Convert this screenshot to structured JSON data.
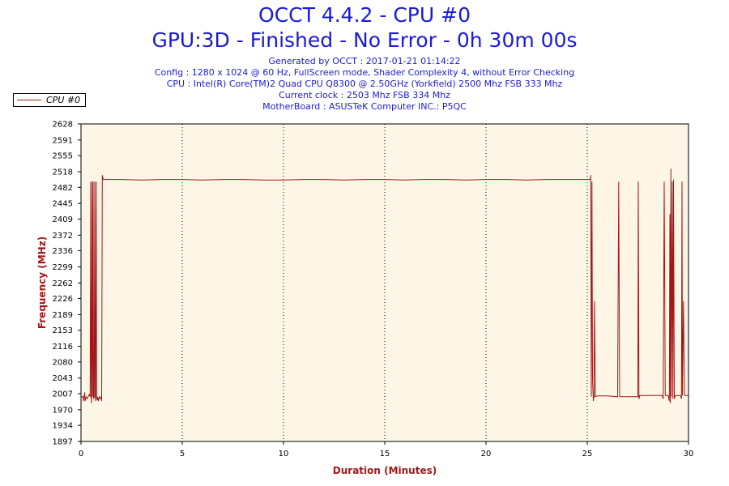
{
  "header": {
    "title": "OCCT 4.4.2 - CPU #0",
    "subtitle": "GPU:3D - Finished - No Error - 0h 30m 00s",
    "info_lines": [
      "Generated by OCCT : 2017-01-21 01:14:22",
      "Config : 1280 x 1024 @ 60 Hz, FullScreen mode, Shader Complexity 4, without Error Checking",
      "CPU : Intel(R) Core(TM)2 Quad CPU Q8300 @ 2.50GHz (Yorkfield) 2500 Mhz FSB 333 Mhz",
      "Current clock : 2503 Mhz FSB 334 Mhz",
      "MotherBoard : ASUSTeK Computer INC.: P5QC"
    ]
  },
  "colors": {
    "title": "#1a1ad8",
    "axis_label": "#a01818",
    "series": "#a01818",
    "plot_bg": "#fdf6e6"
  },
  "chart_data": {
    "type": "line",
    "xlabel": "Duration (Minutes)",
    "ylabel": "Frequency (MHz)",
    "xlim": [
      0,
      30
    ],
    "ylim": [
      1897,
      2628
    ],
    "x_ticks": [
      0,
      5,
      10,
      15,
      20,
      25,
      30
    ],
    "y_ticks": [
      1897,
      1934,
      1970,
      2007,
      2043,
      2080,
      2116,
      2153,
      2189,
      2226,
      2262,
      2299,
      2336,
      2372,
      2409,
      2445,
      2482,
      2518,
      2555,
      2591,
      2628
    ],
    "grid": "vertical-dotted",
    "legend": "top-left",
    "series": [
      {
        "name": "CPU #0",
        "points": [
          [
            0,
            2000
          ],
          [
            0.1,
            2000
          ],
          [
            0.12,
            1990
          ],
          [
            0.15,
            2000
          ],
          [
            0.18,
            2010
          ],
          [
            0.2,
            1990
          ],
          [
            0.25,
            2000
          ],
          [
            0.3,
            1995
          ],
          [
            0.35,
            2000
          ],
          [
            0.4,
            2005
          ],
          [
            0.45,
            2000
          ],
          [
            0.48,
            2495
          ],
          [
            0.5,
            2000
          ],
          [
            0.52,
            1985
          ],
          [
            0.55,
            2495
          ],
          [
            0.57,
            2000
          ],
          [
            0.6,
            2495
          ],
          [
            0.62,
            1995
          ],
          [
            0.65,
            2000
          ],
          [
            0.68,
            2495
          ],
          [
            0.7,
            2000
          ],
          [
            0.72,
            1990
          ],
          [
            0.75,
            2495
          ],
          [
            0.77,
            2000
          ],
          [
            0.8,
            1992
          ],
          [
            0.82,
            2000
          ],
          [
            0.85,
            1990
          ],
          [
            0.9,
            2000
          ],
          [
            0.95,
            1995
          ],
          [
            1.0,
            2000
          ],
          [
            1.02,
            1990
          ],
          [
            1.05,
            2510
          ],
          [
            1.1,
            2500
          ],
          [
            2,
            2500
          ],
          [
            3,
            2499
          ],
          [
            4,
            2500
          ],
          [
            5,
            2500
          ],
          [
            6,
            2499
          ],
          [
            7,
            2500
          ],
          [
            8,
            2500
          ],
          [
            9,
            2499
          ],
          [
            10,
            2499
          ],
          [
            11,
            2500
          ],
          [
            12,
            2500
          ],
          [
            13,
            2499
          ],
          [
            14,
            2500
          ],
          [
            15,
            2500
          ],
          [
            16,
            2499
          ],
          [
            17,
            2500
          ],
          [
            18,
            2500
          ],
          [
            19,
            2499
          ],
          [
            20,
            2500
          ],
          [
            21,
            2500
          ],
          [
            22,
            2499
          ],
          [
            23,
            2500
          ],
          [
            24,
            2500
          ],
          [
            25,
            2500
          ],
          [
            25.15,
            2500
          ],
          [
            25.17,
            2510
          ],
          [
            25.2,
            2000
          ],
          [
            25.23,
            2495
          ],
          [
            25.26,
            2040
          ],
          [
            25.3,
            1990
          ],
          [
            25.33,
            2000
          ],
          [
            25.36,
            2220
          ],
          [
            25.4,
            2000
          ],
          [
            25.5,
            2002
          ],
          [
            26,
            2002
          ],
          [
            26.5,
            2000
          ],
          [
            26.55,
            2495
          ],
          [
            26.6,
            2000
          ],
          [
            27,
            2000
          ],
          [
            27.5,
            2000
          ],
          [
            27.52,
            2495
          ],
          [
            27.55,
            1995
          ],
          [
            27.6,
            2003
          ],
          [
            28,
            2003
          ],
          [
            28.5,
            2003
          ],
          [
            28.7,
            2003
          ],
          [
            28.75,
            1995
          ],
          [
            28.8,
            2495
          ],
          [
            28.85,
            2003
          ],
          [
            29,
            2003
          ],
          [
            29.05,
            1990
          ],
          [
            29.08,
            2420
          ],
          [
            29.1,
            1985
          ],
          [
            29.13,
            2525
          ],
          [
            29.16,
            2000
          ],
          [
            29.2,
            2495
          ],
          [
            29.23,
            1995
          ],
          [
            29.26,
            2500
          ],
          [
            29.3,
            1995
          ],
          [
            29.35,
            2003
          ],
          [
            29.6,
            2003
          ],
          [
            29.65,
            1995
          ],
          [
            29.68,
            2495
          ],
          [
            29.7,
            2003
          ],
          [
            29.75,
            2220
          ],
          [
            29.8,
            2003
          ],
          [
            30,
            2003
          ]
        ]
      }
    ]
  }
}
